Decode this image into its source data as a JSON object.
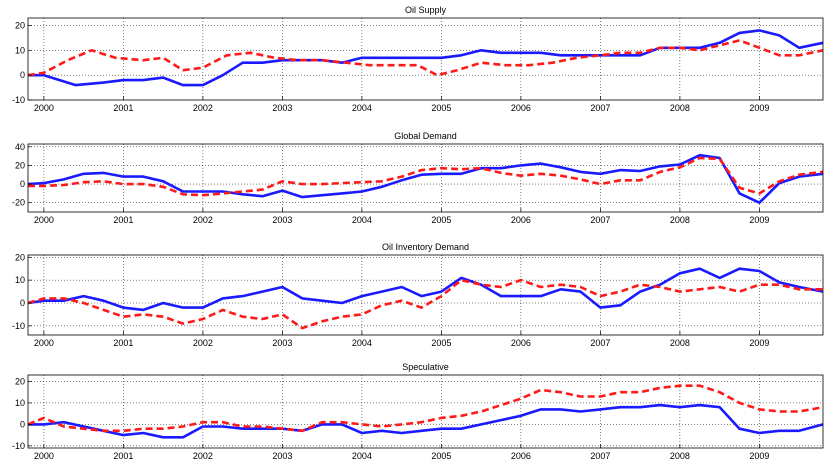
{
  "chart_data": [
    {
      "type": "line",
      "title": "Oil Supply",
      "xlim": [
        1999.8,
        2009.8
      ],
      "ylim": [
        -10,
        23
      ],
      "yticks": [
        -10,
        0,
        10,
        20
      ],
      "xticks": [
        2000,
        2001,
        2002,
        2003,
        2004,
        2005,
        2006,
        2007,
        2008,
        2009
      ],
      "grid": true,
      "series": [
        {
          "color": "#1a1aff",
          "style": "solid",
          "x": [
            1999.8,
            2000.0,
            2000.4,
            2000.75,
            2001.0,
            2001.25,
            2001.5,
            2001.75,
            2002.0,
            2002.25,
            2002.5,
            2002.75,
            2003.0,
            2003.25,
            2003.5,
            2003.75,
            2004.0,
            2004.25,
            2004.5,
            2004.75,
            2005.0,
            2005.25,
            2005.5,
            2005.75,
            2006.0,
            2006.25,
            2006.5,
            2006.75,
            2007.0,
            2007.25,
            2007.5,
            2007.75,
            2008.0,
            2008.25,
            2008.5,
            2008.75,
            2009.0,
            2009.25,
            2009.5,
            2009.8
          ],
          "y": [
            0,
            0,
            -4,
            -3,
            -2,
            -2,
            -1,
            -4,
            -4,
            0,
            5,
            5,
            6,
            6,
            6,
            5,
            7,
            7,
            7,
            7,
            7,
            8,
            10,
            9,
            9,
            9,
            8,
            8,
            8,
            8,
            8,
            11,
            11,
            11,
            13,
            17,
            18,
            16,
            11,
            13
          ]
        },
        {
          "color": "#ff1a1a",
          "style": "dashed",
          "x": [
            1999.8,
            2000.0,
            2000.3,
            2000.6,
            2000.9,
            2001.25,
            2001.5,
            2001.75,
            2002.0,
            2002.3,
            2002.6,
            2002.9,
            2003.2,
            2003.5,
            2003.8,
            2004.1,
            2004.4,
            2004.7,
            2004.95,
            2005.2,
            2005.5,
            2005.8,
            2006.1,
            2006.4,
            2006.7,
            2007.0,
            2007.25,
            2007.5,
            2007.75,
            2008.0,
            2008.25,
            2008.5,
            2008.75,
            2009.0,
            2009.25,
            2009.5,
            2009.8
          ],
          "y": [
            0,
            1,
            6,
            10,
            7,
            6,
            7,
            2,
            3,
            8,
            9,
            7,
            6,
            6,
            5,
            4,
            4,
            4,
            0,
            2,
            5,
            4,
            4,
            5,
            7,
            8,
            9,
            9,
            11,
            11,
            10,
            12,
            14,
            11,
            8,
            8,
            10
          ]
        }
      ]
    },
    {
      "type": "line",
      "title": "Global Demand",
      "xlim": [
        1999.8,
        2009.8
      ],
      "ylim": [
        -30,
        43
      ],
      "yticks": [
        -20,
        0,
        20,
        40
      ],
      "xticks": [
        2000,
        2001,
        2002,
        2003,
        2004,
        2005,
        2006,
        2007,
        2008,
        2009
      ],
      "grid": true,
      "series": [
        {
          "color": "#1a1aff",
          "style": "solid",
          "x": [
            1999.8,
            2000.0,
            2000.25,
            2000.5,
            2000.75,
            2001.0,
            2001.25,
            2001.5,
            2001.75,
            2002.0,
            2002.25,
            2002.5,
            2002.75,
            2003.0,
            2003.25,
            2003.5,
            2003.75,
            2004.0,
            2004.25,
            2004.5,
            2004.75,
            2005.0,
            2005.25,
            2005.5,
            2005.75,
            2006.0,
            2006.25,
            2006.5,
            2006.75,
            2007.0,
            2007.25,
            2007.5,
            2007.75,
            2008.0,
            2008.25,
            2008.5,
            2008.75,
            2009.0,
            2009.25,
            2009.5,
            2009.8
          ],
          "y": [
            0,
            1,
            5,
            11,
            12,
            8,
            8,
            3,
            -8,
            -8,
            -8,
            -11,
            -13,
            -7,
            -14,
            -12,
            -10,
            -8,
            -3,
            4,
            10,
            11,
            11,
            17,
            17,
            20,
            22,
            18,
            13,
            11,
            15,
            14,
            19,
            21,
            31,
            28,
            -10,
            -20,
            1,
            8,
            11
          ]
        },
        {
          "color": "#ff1a1a",
          "style": "dashed",
          "x": [
            1999.8,
            2000.0,
            2000.25,
            2000.5,
            2000.75,
            2001.0,
            2001.25,
            2001.5,
            2001.75,
            2002.0,
            2002.25,
            2002.5,
            2002.75,
            2003.0,
            2003.25,
            2003.5,
            2003.75,
            2004.0,
            2004.25,
            2004.5,
            2004.75,
            2005.0,
            2005.25,
            2005.5,
            2005.75,
            2006.0,
            2006.25,
            2006.5,
            2006.75,
            2007.0,
            2007.25,
            2007.5,
            2007.75,
            2008.0,
            2008.25,
            2008.5,
            2008.75,
            2009.0,
            2009.25,
            2009.5,
            2009.8
          ],
          "y": [
            -2,
            -2,
            -1,
            2,
            3,
            0,
            0,
            -3,
            -11,
            -12,
            -10,
            -8,
            -6,
            3,
            0,
            0,
            1,
            2,
            3,
            8,
            15,
            17,
            16,
            17,
            12,
            9,
            11,
            9,
            5,
            0,
            4,
            4,
            13,
            18,
            28,
            27,
            -4,
            -10,
            3,
            10,
            13
          ]
        }
      ]
    },
    {
      "type": "line",
      "title": "Oil Inventory Demand",
      "xlim": [
        1999.8,
        2009.8
      ],
      "ylim": [
        -14,
        21
      ],
      "yticks": [
        -10,
        0,
        10,
        20
      ],
      "xticks": [
        2000,
        2001,
        2002,
        2003,
        2004,
        2005,
        2006,
        2007,
        2008,
        2009
      ],
      "grid": true,
      "series": [
        {
          "color": "#1a1aff",
          "style": "solid",
          "x": [
            1999.8,
            2000.0,
            2000.25,
            2000.5,
            2000.75,
            2001.0,
            2001.25,
            2001.5,
            2001.75,
            2002.0,
            2002.25,
            2002.5,
            2002.75,
            2003.0,
            2003.25,
            2003.5,
            2003.75,
            2004.0,
            2004.25,
            2004.5,
            2004.75,
            2005.0,
            2005.25,
            2005.5,
            2005.75,
            2006.0,
            2006.25,
            2006.5,
            2006.75,
            2007.0,
            2007.25,
            2007.5,
            2007.75,
            2008.0,
            2008.25,
            2008.5,
            2008.75,
            2009.0,
            2009.25,
            2009.5,
            2009.8
          ],
          "y": [
            0,
            1,
            1,
            3,
            1,
            -2,
            -3,
            0,
            -2,
            -2,
            2,
            3,
            5,
            7,
            2,
            1,
            0,
            3,
            5,
            7,
            3,
            5,
            11,
            8,
            3,
            3,
            3,
            6,
            5,
            -2,
            -1,
            5,
            8,
            13,
            15,
            11,
            15,
            14,
            9,
            7,
            5
          ]
        },
        {
          "color": "#ff1a1a",
          "style": "dashed",
          "x": [
            1999.8,
            2000.0,
            2000.25,
            2000.5,
            2000.75,
            2001.0,
            2001.25,
            2001.5,
            2001.75,
            2002.0,
            2002.25,
            2002.5,
            2002.75,
            2003.0,
            2003.25,
            2003.5,
            2003.75,
            2004.0,
            2004.25,
            2004.5,
            2004.75,
            2005.0,
            2005.25,
            2005.5,
            2005.75,
            2006.0,
            2006.25,
            2006.5,
            2006.75,
            2007.0,
            2007.25,
            2007.5,
            2007.75,
            2008.0,
            2008.25,
            2008.5,
            2008.75,
            2009.0,
            2009.25,
            2009.5,
            2009.8
          ],
          "y": [
            0,
            2,
            2,
            0,
            -3,
            -6,
            -5,
            -6,
            -9,
            -7,
            -3,
            -6,
            -7,
            -5,
            -11,
            -8,
            -6,
            -5,
            -1,
            1,
            -2,
            3,
            10,
            8,
            7,
            10,
            7,
            8,
            7,
            3,
            5,
            8,
            7,
            5,
            6,
            7,
            5,
            8,
            8,
            6,
            6
          ]
        }
      ]
    },
    {
      "type": "line",
      "title": "Speculative",
      "xlim": [
        1999.8,
        2009.8
      ],
      "ylim": [
        -11,
        23
      ],
      "yticks": [
        -10,
        0,
        10,
        20
      ],
      "xticks": [
        2000,
        2001,
        2002,
        2003,
        2004,
        2005,
        2006,
        2007,
        2008,
        2009
      ],
      "grid": true,
      "series": [
        {
          "color": "#1a1aff",
          "style": "solid",
          "x": [
            1999.8,
            2000.0,
            2000.25,
            2000.5,
            2000.75,
            2001.0,
            2001.25,
            2001.5,
            2001.75,
            2002.0,
            2002.25,
            2002.5,
            2002.75,
            2003.0,
            2003.25,
            2003.5,
            2003.75,
            2004.0,
            2004.25,
            2004.5,
            2004.75,
            2005.0,
            2005.25,
            2005.5,
            2005.75,
            2006.0,
            2006.25,
            2006.5,
            2006.75,
            2007.0,
            2007.25,
            2007.5,
            2007.75,
            2008.0,
            2008.25,
            2008.5,
            2008.75,
            2009.0,
            2009.25,
            2009.5,
            2009.8
          ],
          "y": [
            0,
            0,
            1,
            -1,
            -3,
            -5,
            -4,
            -6,
            -6,
            -1,
            -1,
            -2,
            -2,
            -2,
            -3,
            0,
            0,
            -4,
            -3,
            -4,
            -3,
            -2,
            -2,
            0,
            2,
            4,
            7,
            7,
            6,
            7,
            8,
            8,
            9,
            8,
            9,
            8,
            -2,
            -4,
            -3,
            -3,
            0
          ]
        },
        {
          "color": "#ff1a1a",
          "style": "dashed",
          "x": [
            1999.8,
            2000.0,
            2000.25,
            2000.5,
            2000.75,
            2001.0,
            2001.25,
            2001.5,
            2001.75,
            2002.0,
            2002.25,
            2002.5,
            2002.75,
            2003.0,
            2003.25,
            2003.5,
            2003.75,
            2004.0,
            2004.25,
            2004.5,
            2004.75,
            2005.0,
            2005.25,
            2005.5,
            2005.75,
            2006.0,
            2006.25,
            2006.5,
            2006.75,
            2007.0,
            2007.25,
            2007.5,
            2007.75,
            2008.0,
            2008.25,
            2008.5,
            2008.75,
            2009.0,
            2009.25,
            2009.5,
            2009.8
          ],
          "y": [
            0,
            3,
            -1,
            -2,
            -3,
            -3,
            -2,
            -2,
            -1,
            1,
            1,
            -1,
            -1,
            -2,
            -3,
            1,
            1,
            0,
            -1,
            0,
            1,
            3,
            4,
            6,
            9,
            12,
            16,
            15,
            13,
            13,
            15,
            15,
            17,
            18,
            18,
            15,
            10,
            7,
            6,
            6,
            8
          ]
        }
      ]
    }
  ]
}
